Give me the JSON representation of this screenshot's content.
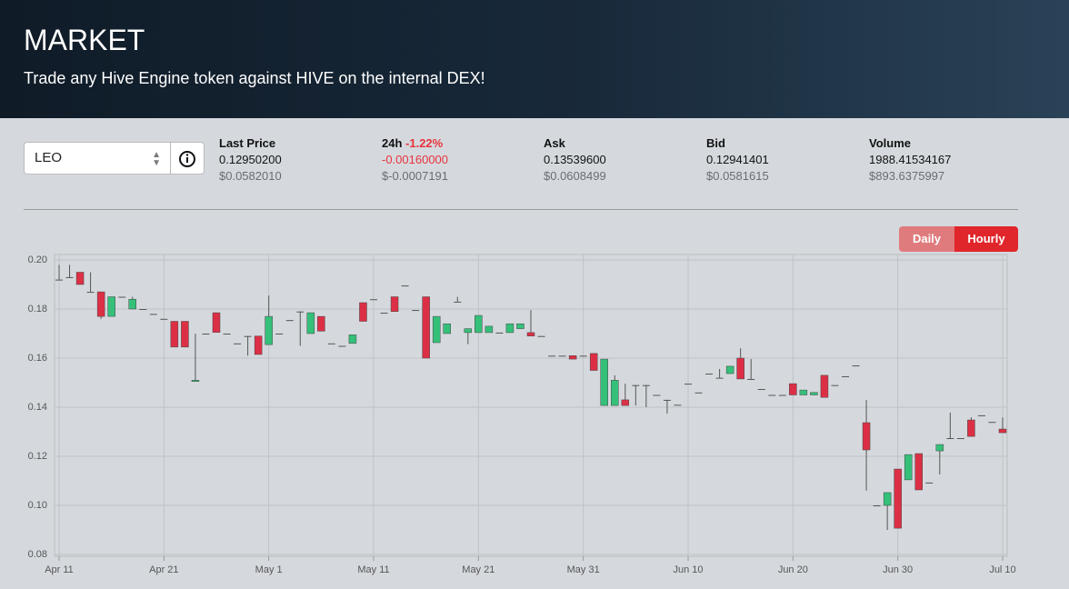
{
  "header": {
    "title": "MARKET",
    "subtitle": "Trade any Hive Engine token against HIVE on the internal DEX!"
  },
  "token_select": {
    "value": "LEO"
  },
  "stats": [
    {
      "label": "Last Price",
      "value": "0.12950200",
      "usd": "$0.0582010"
    },
    {
      "label": "24h",
      "change": "-1.22%",
      "value": "-0.00160000",
      "usd": "$-0.0007191"
    },
    {
      "label": "Ask",
      "value": "0.13539600",
      "usd": "$0.0608499"
    },
    {
      "label": "Bid",
      "value": "0.12941401",
      "usd": "$0.0581615"
    },
    {
      "label": "Volume",
      "value": "1988.41534167",
      "usd": "$893.6375997"
    }
  ],
  "range_buttons": [
    "Daily",
    "Hourly"
  ],
  "active_range": "Hourly",
  "chart_data": {
    "type": "candlestick",
    "categories": [
      "Apr 11",
      null,
      null,
      null,
      null,
      null,
      null,
      null,
      null,
      null,
      "Apr 21",
      null,
      null,
      null,
      null,
      null,
      null,
      null,
      null,
      null,
      "May 1",
      null,
      null,
      null,
      null,
      null,
      null,
      null,
      null,
      null,
      "May 11",
      null,
      null,
      null,
      null,
      null,
      null,
      null,
      null,
      null,
      "May 21",
      null,
      null,
      null,
      null,
      null,
      null,
      null,
      null,
      null,
      "May 31",
      null,
      null,
      null,
      null,
      null,
      null,
      null,
      null,
      null,
      "Jun 10",
      null,
      null,
      null,
      null,
      null,
      null,
      null,
      null,
      null,
      "Jun 20",
      null,
      null,
      null,
      null,
      null,
      null,
      null,
      null,
      null,
      "Jun 30",
      null,
      null,
      null,
      null,
      null,
      null,
      null,
      null,
      null,
      "Jul 10"
    ],
    "open": [
      0.192,
      0.193,
      0.195,
      0.187,
      0.187,
      0.177,
      0.185,
      0.18,
      0.18,
      0.178,
      0.176,
      0.175,
      0.175,
      0.1505,
      0.17,
      0.1785,
      0.17,
      0.166,
      0.169,
      0.169,
      0.1655,
      0.17,
      0.1755,
      0.179,
      0.17,
      0.177,
      0.166,
      0.165,
      0.166,
      0.1826,
      0.184,
      0.1785,
      0.185,
      0.1896,
      0.1796,
      0.185,
      0.1663,
      0.17,
      0.183,
      0.1704,
      0.1704,
      0.1704,
      0.1704,
      0.1704,
      0.172,
      0.1704,
      0.169,
      0.161,
      0.161,
      0.161,
      0.161,
      0.1619,
      0.1407,
      0.1407,
      0.143,
      0.149,
      0.149,
      0.145,
      0.143,
      0.141,
      0.1496,
      0.146,
      0.1537,
      0.152,
      0.1537,
      0.16,
      0.1515,
      0.1474,
      0.145,
      0.145,
      0.1496,
      0.145,
      0.145,
      0.153,
      0.149,
      0.1526,
      0.157,
      0.1337,
      0.1,
      0.1,
      0.1148,
      0.1104,
      0.1211,
      0.1093,
      0.1222,
      0.1274,
      0.1274,
      0.1348,
      0.1367,
      0.134,
      0.1311
    ],
    "high": [
      0.198,
      0.198,
      0.195,
      0.195,
      0.187,
      0.185,
      0.185,
      0.185,
      0.18,
      0.178,
      0.176,
      0.175,
      0.175,
      0.17,
      0.17,
      0.1785,
      0.17,
      0.166,
      0.169,
      0.169,
      0.1855,
      0.17,
      0.1755,
      0.179,
      0.1785,
      0.177,
      0.166,
      0.165,
      0.1695,
      0.1826,
      0.184,
      0.1785,
      0.185,
      0.1896,
      0.1796,
      0.185,
      0.177,
      0.174,
      0.185,
      0.172,
      0.1774,
      0.173,
      0.1704,
      0.174,
      0.174,
      0.1796,
      0.169,
      0.161,
      0.161,
      0.161,
      0.161,
      0.1619,
      0.1596,
      0.153,
      0.1496,
      0.149,
      0.149,
      0.145,
      0.143,
      0.141,
      0.1496,
      0.146,
      0.1537,
      0.1556,
      0.1567,
      0.164,
      0.1596,
      0.1474,
      0.145,
      0.145,
      0.1496,
      0.147,
      0.146,
      0.153,
      0.149,
      0.1526,
      0.157,
      0.143,
      0.1,
      0.1052,
      0.1148,
      0.1207,
      0.1211,
      0.1093,
      0.1248,
      0.1378,
      0.1274,
      0.1359,
      0.1367,
      0.134,
      0.1359
    ],
    "low": [
      0.192,
      0.193,
      0.19,
      0.187,
      0.176,
      0.177,
      0.185,
      0.18,
      0.18,
      0.178,
      0.176,
      0.1645,
      0.1645,
      0.1505,
      0.17,
      0.1705,
      0.17,
      0.166,
      0.161,
      0.1615,
      0.1655,
      0.17,
      0.1755,
      0.165,
      0.17,
      0.171,
      0.166,
      0.165,
      0.166,
      0.175,
      0.184,
      0.1785,
      0.179,
      0.1896,
      0.1796,
      0.16,
      0.1663,
      0.17,
      0.183,
      0.1657,
      0.1704,
      0.1704,
      0.1704,
      0.1704,
      0.172,
      0.169,
      0.169,
      0.161,
      0.161,
      0.1596,
      0.161,
      0.155,
      0.1407,
      0.1407,
      0.1407,
      0.1407,
      0.14,
      0.145,
      0.1374,
      0.141,
      0.1496,
      0.146,
      0.1537,
      0.152,
      0.1537,
      0.1515,
      0.1515,
      0.1474,
      0.145,
      0.145,
      0.145,
      0.145,
      0.145,
      0.144,
      0.149,
      0.1526,
      0.157,
      0.106,
      0.1,
      0.09,
      0.0907,
      0.1104,
      0.1063,
      0.1093,
      0.1126,
      0.1274,
      0.1274,
      0.1281,
      0.1367,
      0.134,
      0.1296
    ],
    "close": [
      0.192,
      0.193,
      0.19,
      0.187,
      0.177,
      0.185,
      0.185,
      0.184,
      0.18,
      0.178,
      0.176,
      0.1645,
      0.1645,
      0.151,
      0.17,
      0.1705,
      0.17,
      0.166,
      0.169,
      0.1615,
      0.177,
      0.17,
      0.1755,
      0.179,
      0.1785,
      0.171,
      0.166,
      0.165,
      0.1695,
      0.175,
      0.184,
      0.1785,
      0.179,
      0.1896,
      0.1796,
      0.16,
      0.177,
      0.174,
      0.183,
      0.172,
      0.1774,
      0.173,
      0.1704,
      0.174,
      0.174,
      0.169,
      0.169,
      0.161,
      0.161,
      0.1596,
      0.161,
      0.155,
      0.1596,
      0.151,
      0.1407,
      0.149,
      0.149,
      0.145,
      0.143,
      0.141,
      0.1496,
      0.146,
      0.1537,
      0.152,
      0.1567,
      0.1515,
      0.1515,
      0.1474,
      0.145,
      0.145,
      0.145,
      0.147,
      0.146,
      0.144,
      0.149,
      0.1526,
      0.157,
      0.1226,
      0.1,
      0.1052,
      0.0907,
      0.1207,
      0.1063,
      0.1093,
      0.1248,
      0.1274,
      0.1274,
      0.1281,
      0.1367,
      0.134,
      0.1296
    ],
    "up_color": "#35c07a",
    "down_color": "#dc2f45",
    "flat_color": "#555555",
    "ylim": [
      0.08,
      0.2
    ],
    "yticks": [
      0.08,
      {
        "value": 0.1,
        "label": "0.10"
      },
      0.12,
      0.14,
      0.16,
      0.18,
      {
        "value": 0.2,
        "label": "0.20"
      }
    ],
    "grid": true
  }
}
